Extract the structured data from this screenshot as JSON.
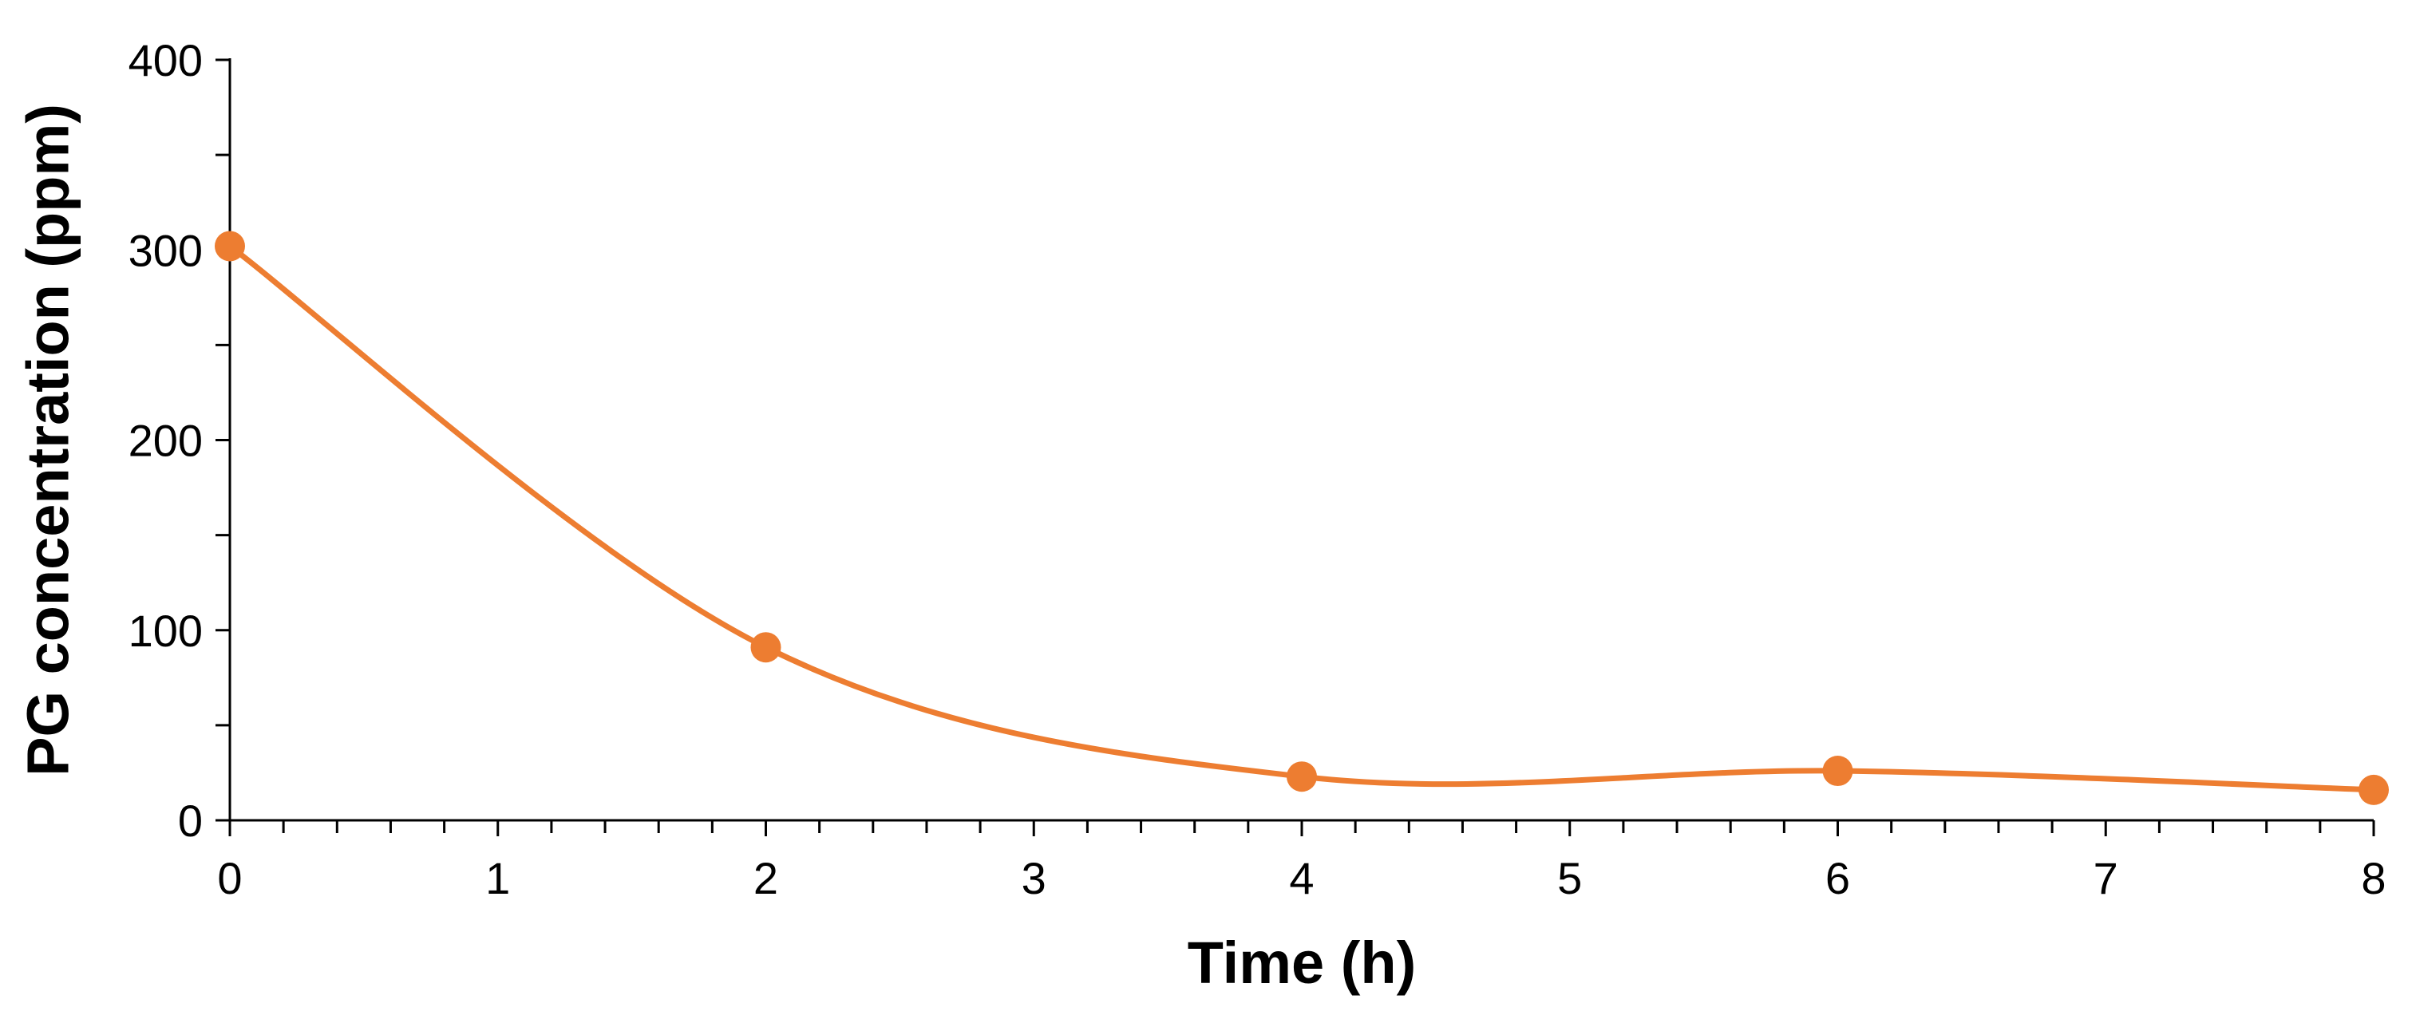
{
  "chart_data": {
    "type": "line",
    "title": "",
    "xlabel": "Time (h)",
    "ylabel": "PG concentration (ppm)",
    "xlim": [
      0,
      8
    ],
    "ylim": [
      0,
      400
    ],
    "x_ticks": [
      "0",
      "1",
      "2",
      "3",
      "4",
      "5",
      "6",
      "7",
      "8"
    ],
    "y_ticks": [
      "0",
      "100",
      "200",
      "300",
      "400"
    ],
    "grid": false,
    "legend": "none",
    "smooth": true,
    "series": [
      {
        "color": "#ED7D31",
        "x": [
          0,
          2,
          4,
          6,
          8
        ],
        "y": [
          302,
          91,
          23,
          26,
          16
        ]
      }
    ]
  }
}
